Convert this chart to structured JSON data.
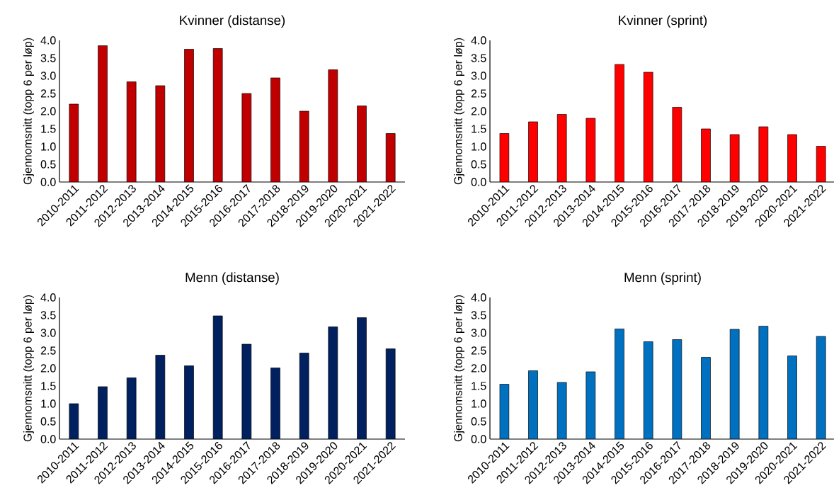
{
  "chart_data": [
    {
      "type": "bar",
      "title": "Kvinner (distanse)",
      "ylabel": "Gjennomsnitt (topp 6 per løp)",
      "categories": [
        "2010-2011",
        "2011-2012",
        "2012-2013",
        "2013-2014",
        "2014-2015",
        "2015-2016",
        "2016-2017",
        "2017-2018",
        "2018-2019",
        "2019-2020",
        "2020-2021",
        "2021-2022"
      ],
      "values": [
        2.2,
        3.85,
        2.83,
        2.72,
        3.75,
        3.77,
        2.5,
        2.94,
        2.0,
        3.17,
        2.15,
        1.37
      ],
      "color": "#c00000",
      "ylim": [
        0,
        4
      ],
      "yticks": [
        {
          "value": 0,
          "label": "0.0"
        },
        {
          "value": 0.5,
          "label": "0.5"
        },
        {
          "value": 1,
          "label": "1.0"
        },
        {
          "value": 1.5,
          "label": "1.5"
        },
        {
          "value": 2,
          "label": "2.0"
        },
        {
          "value": 2.5,
          "label": "2.5"
        },
        {
          "value": 3,
          "label": "3.0"
        },
        {
          "value": 3.5,
          "label": "3.5"
        },
        {
          "value": 4,
          "label": "4.0"
        }
      ]
    },
    {
      "type": "bar",
      "title": "Kvinner (sprint)",
      "ylabel": "Gjennomsnitt (topp 6 per løp)",
      "categories": [
        "2010-2011",
        "2011-2012",
        "2012-2013",
        "2013-2014",
        "2014-2015",
        "2015-2016",
        "2016-2017",
        "2017-2018",
        "2018-2019",
        "2019-2020",
        "2020-2021",
        "2021-2022"
      ],
      "values": [
        1.37,
        1.7,
        1.91,
        1.8,
        3.32,
        3.1,
        2.11,
        1.5,
        1.34,
        1.56,
        1.34,
        1.01
      ],
      "color": "#ff0000",
      "ylim": [
        0,
        4
      ],
      "yticks": [
        {
          "value": 0,
          "label": "0.0"
        },
        {
          "value": 0.5,
          "label": "0.5"
        },
        {
          "value": 1,
          "label": "1.0"
        },
        {
          "value": 1.5,
          "label": "1.5"
        },
        {
          "value": 2,
          "label": "2.0"
        },
        {
          "value": 2.5,
          "label": "2.5"
        },
        {
          "value": 3,
          "label": "3.0"
        },
        {
          "value": 3.5,
          "label": "3.5"
        },
        {
          "value": 4,
          "label": "4.0"
        }
      ]
    },
    {
      "type": "bar",
      "title": "Menn (distanse)",
      "ylabel": "Gjennomsnitt (topp 6 per løp)",
      "categories": [
        "2010-2011",
        "2011-2012",
        "2012-2013",
        "2013-2014",
        "2014-2015",
        "2015-2016",
        "2016-2017",
        "2017-2018",
        "2018-2019",
        "2019-2020",
        "2020-2021",
        "2021-2022"
      ],
      "values": [
        1.0,
        1.48,
        1.73,
        2.37,
        2.07,
        3.48,
        2.68,
        2.01,
        2.43,
        3.17,
        3.43,
        2.55
      ],
      "color": "#002060",
      "ylim": [
        0,
        4
      ],
      "yticks": [
        {
          "value": 0,
          "label": "0.0"
        },
        {
          "value": 0.5,
          "label": "0.5"
        },
        {
          "value": 1,
          "label": "1.0"
        },
        {
          "value": 1.5,
          "label": "1.5"
        },
        {
          "value": 2,
          "label": "2.0"
        },
        {
          "value": 2.5,
          "label": "2.5"
        },
        {
          "value": 3,
          "label": "3.0"
        },
        {
          "value": 3.5,
          "label": "3.5"
        },
        {
          "value": 4,
          "label": "4.0"
        }
      ]
    },
    {
      "type": "bar",
      "title": "Menn (sprint)",
      "ylabel": "Gjennomsnitt (topp 6 per løp)",
      "categories": [
        "2010-2011",
        "2011-2012",
        "2012-2013",
        "2013-2014",
        "2014-2015",
        "2015-2016",
        "2016-2017",
        "2017-2018",
        "2018-2019",
        "2019-2020",
        "2020-2021",
        "2021-2022"
      ],
      "values": [
        1.55,
        1.93,
        1.6,
        1.9,
        3.11,
        2.75,
        2.81,
        2.31,
        3.1,
        3.19,
        2.35,
        2.9
      ],
      "color": "#0070c0",
      "ylim": [
        0,
        4
      ],
      "yticks": [
        {
          "value": 0,
          "label": "0.0"
        },
        {
          "value": 0.5,
          "label": "0.5"
        },
        {
          "value": 1,
          "label": "1.0"
        },
        {
          "value": 1.5,
          "label": "1.5"
        },
        {
          "value": 2,
          "label": "2.0"
        },
        {
          "value": 2.5,
          "label": "2.5"
        },
        {
          "value": 3,
          "label": "3.0"
        },
        {
          "value": 3.5,
          "label": "3.5"
        },
        {
          "value": 4,
          "label": "4.0"
        }
      ]
    }
  ]
}
